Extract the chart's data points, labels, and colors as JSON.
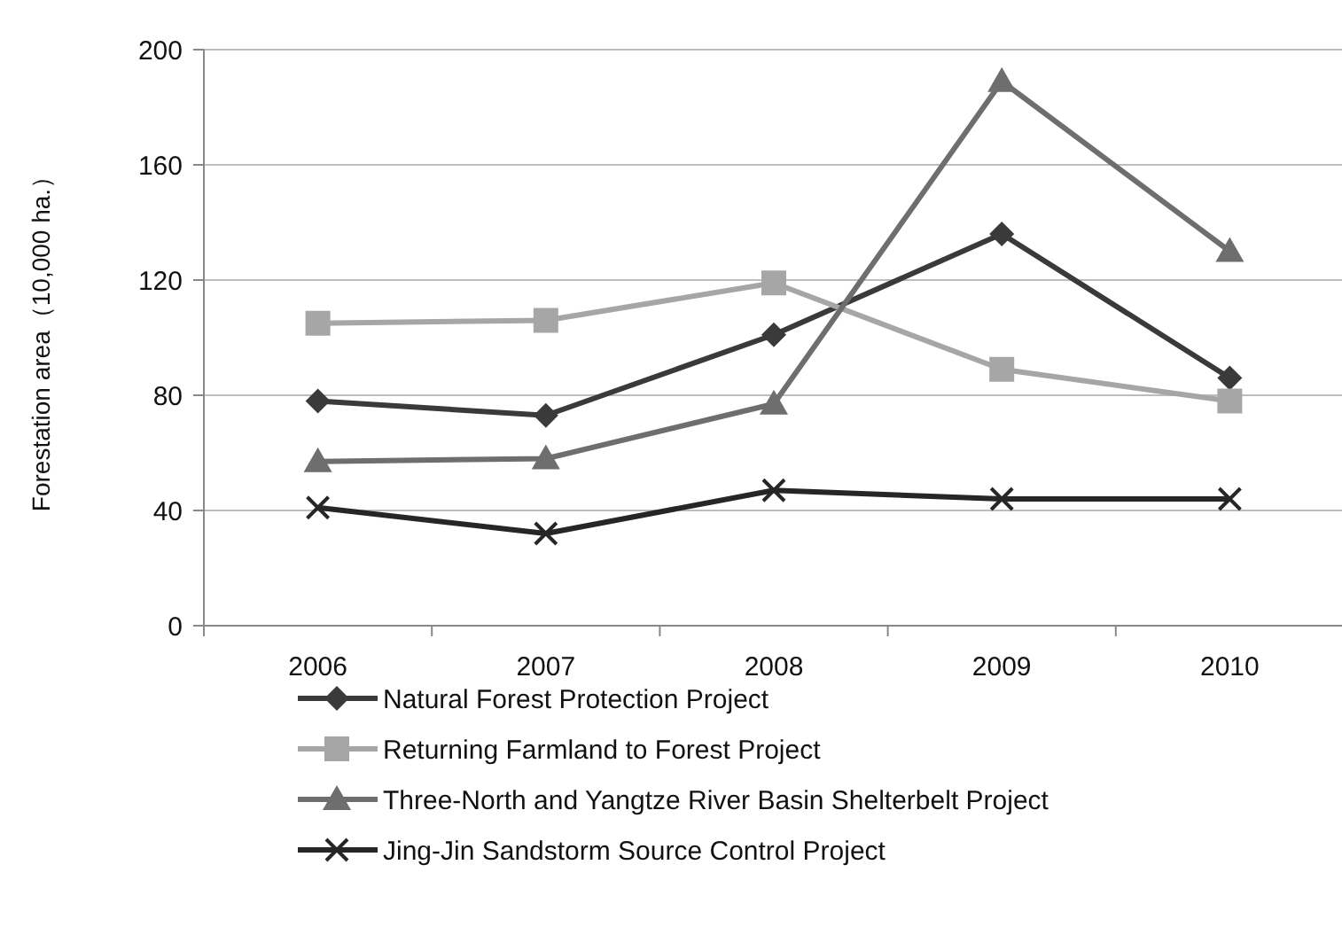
{
  "chart_data": {
    "type": "line",
    "ylabel": "Forestation area（10,000 ha.）",
    "categories": [
      "2006",
      "2007",
      "2008",
      "2009",
      "2010"
    ],
    "series": [
      {
        "name": "Natural Forest Protection Project",
        "color": "#3a3a3a",
        "marker": "diamond",
        "values": [
          78,
          73,
          101,
          136,
          86
        ]
      },
      {
        "name": "Returning Farmland to Forest Project",
        "color": "#a6a6a6",
        "marker": "square",
        "values": [
          105,
          106,
          119,
          89,
          78
        ]
      },
      {
        "name": "Three-North and Yangtze River Basin Shelterbelt Project",
        "color": "#6e6e6e",
        "marker": "triangle",
        "values": [
          57,
          58,
          77,
          189,
          130
        ]
      },
      {
        "name": "Jing-Jin Sandstorm Source Control Project",
        "color": "#262626",
        "marker": "cross",
        "values": [
          41,
          32,
          47,
          44,
          44
        ]
      }
    ],
    "ylim": [
      0,
      200
    ],
    "yticks": [
      0,
      40,
      80,
      120,
      160,
      200
    ],
    "grid": "y",
    "legend": "bottom",
    "line_style": "solid"
  }
}
